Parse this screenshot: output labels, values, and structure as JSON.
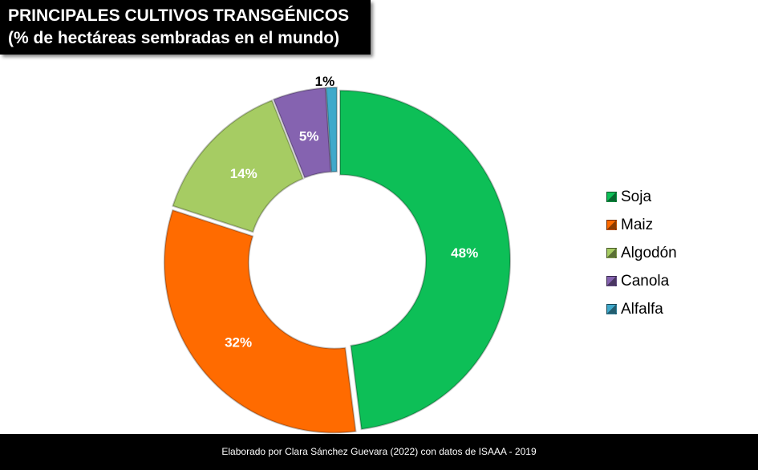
{
  "title": {
    "line1": "PRINCIPALES CULTIVOS TRANSGÉNICOS",
    "line2": "(% de hectáreas sembradas en el mundo)"
  },
  "footer": "Elaborado por Clara Sánchez Guevara (2022) con datos de ISAAA  - 2019",
  "chart_data": {
    "type": "pie",
    "variant": "donut",
    "title": "PRINCIPALES CULTIVOS TRANSGÉNICOS (% de hectáreas sembradas en el mundo)",
    "categories": [
      "Soja",
      "Maiz",
      "Algodón",
      "Canola",
      "Alfalfa"
    ],
    "values": [
      48,
      32,
      14,
      5,
      1
    ],
    "labels": [
      "48%",
      "32%",
      "14%",
      "5%",
      "1%"
    ],
    "colors": [
      "#0DBF57",
      "#FF6B00",
      "#A6CC63",
      "#8563B0",
      "#3FA9CB"
    ],
    "legend_position": "right"
  }
}
